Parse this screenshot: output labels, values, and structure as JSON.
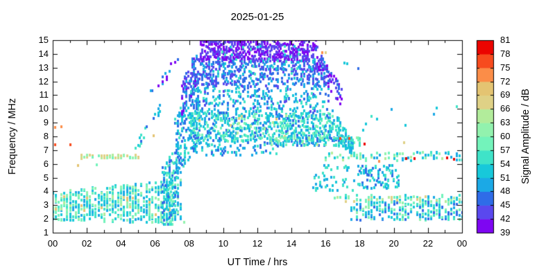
{
  "chart_data": {
    "type": "scatter",
    "title": "2025-01-25",
    "xlabel": "UT Time / hrs",
    "ylabel": "Frequency / MHz",
    "xlim": [
      0,
      24
    ],
    "ylim": [
      1,
      15
    ],
    "grid": false,
    "x_ticks": [
      [
        0,
        "00"
      ],
      [
        2,
        "02"
      ],
      [
        4,
        "04"
      ],
      [
        6,
        "06"
      ],
      [
        8,
        "08"
      ],
      [
        10,
        "10"
      ],
      [
        12,
        "12"
      ],
      [
        14,
        "14"
      ],
      [
        16,
        "16"
      ],
      [
        18,
        "18"
      ],
      [
        20,
        "20"
      ],
      [
        22,
        "22"
      ],
      [
        24,
        "00"
      ]
    ],
    "x_minor_ticks": [
      1,
      3,
      5,
      7,
      9,
      11,
      13,
      15,
      17,
      19,
      21,
      23
    ],
    "y_ticks": [
      1,
      2,
      3,
      4,
      5,
      6,
      7,
      8,
      9,
      10,
      11,
      12,
      13,
      14,
      15
    ],
    "colorbar": {
      "label": "Signal Amplitude / dB",
      "min": 39,
      "max": 81,
      "step": 3,
      "tick_labels": [
        39,
        42,
        45,
        48,
        51,
        54,
        57,
        60,
        63,
        66,
        69,
        72,
        75,
        78,
        81
      ],
      "colors": [
        "#7e06f2",
        "#5a48ee",
        "#2f6ce8",
        "#1ba9e6",
        "#17c8da",
        "#3fe3c8",
        "#73f3bb",
        "#92f2ae",
        "#b2ec9b",
        "#dfd186",
        "#e4c472",
        "#fb8d48",
        "#f74b1e",
        "#eb0400"
      ]
    },
    "point_size": [
      3,
      4
    ],
    "seed": 20250125,
    "bands": [
      {
        "name": "night-lower-band",
        "t": [
          0,
          7.6
        ],
        "f_lo": [
          1.9,
          1.7
        ],
        "f_hi": [
          3.9,
          5.0
        ],
        "n": 650,
        "amp": [
          48,
          63
        ],
        "dt": 0.1667
      },
      {
        "name": "night-lower-warm-flecks",
        "t": [
          0.2,
          7.4
        ],
        "f_lo": [
          2.3,
          2.3
        ],
        "f_hi": [
          3.7,
          3.7
        ],
        "n": 24,
        "amp": [
          63,
          72
        ],
        "dt": 0.1667
      },
      {
        "name": "night-6.5MHz-row",
        "t": [
          1.5,
          5.1
        ],
        "f_lo": [
          6.38,
          6.38
        ],
        "f_hi": [
          6.68,
          6.68
        ],
        "n": 50,
        "amp": [
          57,
          70
        ],
        "dt": 0.1667
      },
      {
        "name": "dawn-riser-low",
        "t": [
          4.85,
          6.3
        ],
        "f_lo": [
          6.7,
          9.8
        ],
        "f_hi": [
          7.4,
          10.7
        ],
        "n": 18,
        "amp": [
          45,
          57
        ],
        "dt": 0.0833
      },
      {
        "name": "dawn-riser-high",
        "t": [
          5.7,
          7.4
        ],
        "f_lo": [
          11.0,
          12.9
        ],
        "f_hi": [
          11.8,
          14.0
        ],
        "n": 14,
        "amp": [
          39,
          50
        ],
        "dt": 0.0833
      },
      {
        "name": "sunrise-low-column",
        "t": [
          6.4,
          7.3
        ],
        "f_lo": [
          1.5,
          1.6
        ],
        "f_hi": [
          5.8,
          7.2
        ],
        "n": 150,
        "amp": [
          45,
          58
        ],
        "dt": 0.0833
      },
      {
        "name": "morning-rise",
        "t": [
          7.2,
          8.6
        ],
        "f_lo": [
          4.8,
          7.6
        ],
        "f_hi": [
          9.3,
          12.8
        ],
        "n": 230,
        "amp": [
          45,
          56
        ],
        "dt": 0.0833
      },
      {
        "name": "morning-edge-column",
        "t": [
          7.6,
          8.4
        ],
        "f_lo": [
          9.5,
          11.6
        ],
        "f_hi": [
          12.2,
          14.3
        ],
        "n": 90,
        "amp": [
          40,
          50
        ],
        "dt": 0.0833
      },
      {
        "name": "day-band-7.6-9.7MHz",
        "t": [
          7.9,
          16.4
        ],
        "f_lo": [
          7.6,
          7.6
        ],
        "f_hi": [
          9.7,
          9.7
        ],
        "n": 620,
        "amp": [
          46,
          60
        ],
        "dt": 0.0833
      },
      {
        "name": "day-band-tan-flecks",
        "t": [
          8.2,
          15.8
        ],
        "f_lo": [
          7.8,
          7.8
        ],
        "f_hi": [
          9.5,
          9.5
        ],
        "n": 12,
        "amp": [
          63,
          72
        ],
        "dt": 0.0833
      },
      {
        "name": "day-mid-9.7-11.6MHz",
        "t": [
          8.4,
          16.2
        ],
        "f_lo": [
          9.7,
          9.7
        ],
        "f_hi": [
          11.6,
          11.6
        ],
        "n": 260,
        "amp": [
          44,
          56
        ],
        "dt": 0.0833
      },
      {
        "name": "day-upper-11.6-13.6MHz",
        "t": [
          8.4,
          16.0
        ],
        "f_lo": [
          11.6,
          11.6
        ],
        "f_hi": [
          13.6,
          13.6
        ],
        "n": 430,
        "amp": [
          42,
          50
        ],
        "dt": 0.0833
      },
      {
        "name": "day-top-purple",
        "t": [
          8.6,
          15.4
        ],
        "f_lo": [
          13.5,
          13.5
        ],
        "f_hi": [
          15.0,
          15.0
        ],
        "n": 500,
        "amp": [
          39,
          45
        ],
        "dt": 0.0833
      },
      {
        "name": "day-upper-cyan-specks",
        "t": [
          9.0,
          15.3
        ],
        "f_lo": [
          12.0,
          12.0
        ],
        "f_hi": [
          14.6,
          14.6
        ],
        "n": 55,
        "amp": [
          51,
          57
        ],
        "dt": 0.0833
      },
      {
        "name": "day-low-sparse-6.6-7.6MHz",
        "t": [
          8.2,
          13.2
        ],
        "f_lo": [
          6.6,
          6.6
        ],
        "f_hi": [
          7.6,
          7.6
        ],
        "n": 70,
        "amp": [
          45,
          57
        ],
        "dt": 0.0833
      },
      {
        "name": "day-7.5MHz-row",
        "t": [
          12.7,
          18.0
        ],
        "f_lo": [
          7.3,
          7.3
        ],
        "f_hi": [
          7.95,
          7.95
        ],
        "n": 150,
        "amp": [
          45,
          64
        ],
        "dt": 0.0833
      },
      {
        "name": "day-top-falling-edge",
        "t": [
          15.4,
          16.9
        ],
        "f_lo": [
          12.8,
          10.2
        ],
        "f_hi": [
          14.6,
          11.6
        ],
        "n": 85,
        "amp": [
          39,
          48
        ],
        "dt": 0.0833
      },
      {
        "name": "dusk-falling-cyan",
        "t": [
          16.2,
          17.6
        ],
        "f_lo": [
          8.0,
          6.6
        ],
        "f_hi": [
          10.4,
          7.7
        ],
        "n": 100,
        "amp": [
          48,
          57
        ],
        "dt": 0.0833
      },
      {
        "name": "dusk-4-6MHz-sparse",
        "t": [
          15.2,
          17.7
        ],
        "f_lo": [
          4.0,
          4.0
        ],
        "f_hi": [
          5.9,
          5.9
        ],
        "n": 50,
        "amp": [
          48,
          57
        ],
        "dt": 0.0833
      },
      {
        "name": "evening-6.5MHz-row",
        "t": [
          15.8,
          24
        ],
        "f_lo": [
          6.25,
          6.25
        ],
        "f_hi": [
          6.85,
          6.85
        ],
        "n": 90,
        "amp": [
          48,
          66
        ],
        "dt": 0.1667
      },
      {
        "name": "evening-4-6MHz-cluster",
        "t": [
          17.9,
          20.3
        ],
        "f_lo": [
          4.2,
          4.2
        ],
        "f_hi": [
          5.9,
          5.9
        ],
        "n": 105,
        "amp": [
          45,
          57
        ],
        "dt": 0.0833
      },
      {
        "name": "evening-3.4MHz-row",
        "t": [
          16.5,
          24
        ],
        "f_lo": [
          3.25,
          3.25
        ],
        "f_hi": [
          3.7,
          3.7
        ],
        "n": 85,
        "amp": [
          48,
          68
        ],
        "dt": 0.1667
      },
      {
        "name": "evening-lower-band",
        "t": [
          17.5,
          24
        ],
        "f_lo": [
          1.9,
          1.9
        ],
        "f_hi": [
          3.2,
          3.2
        ],
        "n": 240,
        "amp": [
          45,
          62
        ],
        "dt": 0.1667
      },
      {
        "name": "evening-9-10MHz-singles",
        "t": [
          17.2,
          23.6
        ],
        "f_lo": [
          8.3,
          8.3
        ],
        "f_hi": [
          10.2,
          10.2
        ],
        "n": 9,
        "amp": [
          48,
          56
        ],
        "dt": 0.1667
      }
    ],
    "outliers": [
      [
        0.12,
        8.65,
        73
      ],
      [
        0.5,
        8.7,
        73
      ],
      [
        0.12,
        7.42,
        76
      ],
      [
        1.0,
        7.42,
        76
      ],
      [
        1.45,
        5.9,
        70
      ],
      [
        2.55,
        5.95,
        58
      ],
      [
        5.9,
        8.05,
        70
      ],
      [
        15.8,
        14.1,
        73
      ],
      [
        16.0,
        14.1,
        67
      ],
      [
        16.85,
        7.85,
        76
      ],
      [
        17.35,
        7.85,
        76
      ],
      [
        17.1,
        13.35,
        52
      ],
      [
        17.25,
        13.3,
        52
      ],
      [
        17.9,
        12.95,
        46
      ],
      [
        18.25,
        7.45,
        79
      ],
      [
        19.1,
        6.2,
        73
      ],
      [
        20.6,
        7.55,
        67
      ],
      [
        20.7,
        6.4,
        79
      ],
      [
        21.2,
        6.4,
        79
      ],
      [
        23.1,
        6.45,
        79
      ],
      [
        23.5,
        6.35,
        79
      ]
    ]
  }
}
